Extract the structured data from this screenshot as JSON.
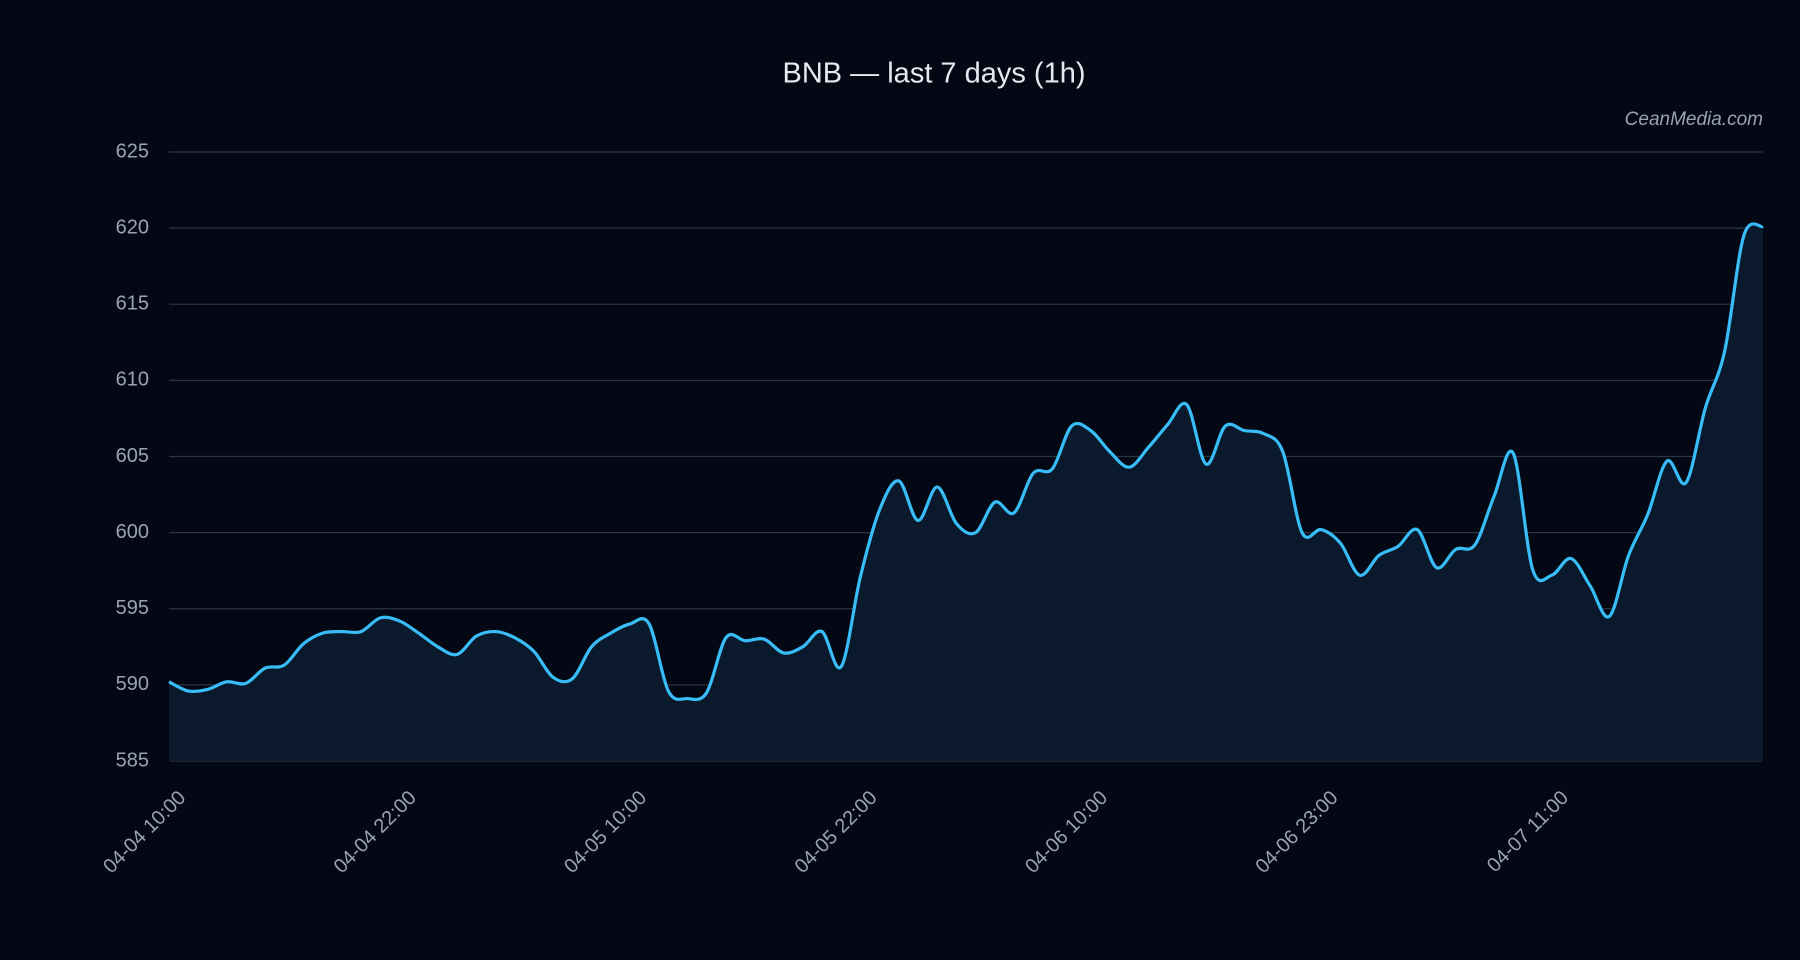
{
  "chart_data": {
    "type": "line",
    "title": "BNB — last 7 days (1h)",
    "watermark": "CeanMedia.com",
    "categories": [
      "04-04 10:00",
      null,
      null,
      null,
      null,
      null,
      null,
      null,
      null,
      null,
      null,
      null,
      "04-04 22:00",
      null,
      null,
      null,
      null,
      null,
      null,
      null,
      null,
      null,
      null,
      null,
      "04-05 10:00",
      null,
      null,
      null,
      null,
      null,
      null,
      null,
      null,
      null,
      null,
      null,
      "04-05 22:00",
      null,
      null,
      null,
      null,
      null,
      null,
      null,
      null,
      null,
      null,
      null,
      "04-06 10:00",
      null,
      null,
      null,
      null,
      null,
      null,
      null,
      null,
      null,
      null,
      null,
      "04-06 23:00",
      null,
      null,
      null,
      null,
      null,
      null,
      null,
      null,
      null,
      null,
      null,
      "04-07 11:00",
      null,
      null,
      null,
      null,
      null,
      null,
      null,
      null,
      null,
      null,
      null
    ],
    "values": [
      590.2,
      589.6,
      589.7,
      590.2,
      590.1,
      591.1,
      591.3,
      592.7,
      593.4,
      593.5,
      593.5,
      594.4,
      594.2,
      593.4,
      592.5,
      592.0,
      593.2,
      593.5,
      593.1,
      592.2,
      590.5,
      590.4,
      592.5,
      593.4,
      594.0,
      594.0,
      589.6,
      589.1,
      589.5,
      593.1,
      592.9,
      593.0,
      592.1,
      592.5,
      593.5,
      591.2,
      597.1,
      601.5,
      603.4,
      600.8,
      603.0,
      600.6,
      600.0,
      602.0,
      601.3,
      603.9,
      604.2,
      607.0,
      606.7,
      605.3,
      604.3,
      605.6,
      607.1,
      608.4,
      604.5,
      607.0,
      606.7,
      606.5,
      605.3,
      600.0,
      600.2,
      599.3,
      597.2,
      598.5,
      599.1,
      600.2,
      597.7,
      598.9,
      599.2,
      602.4,
      605.2,
      597.6,
      597.2,
      598.3,
      596.5,
      594.5,
      598.5,
      601.2,
      604.7,
      603.3,
      608.2,
      611.9,
      619.5,
      620.1
    ],
    "color": "#38bdf8",
    "area_color": "#0a1a2c",
    "ylim": [
      585,
      625
    ],
    "yticks": [
      585,
      590,
      595,
      600,
      605,
      610,
      615,
      620,
      625
    ],
    "grid": true
  }
}
